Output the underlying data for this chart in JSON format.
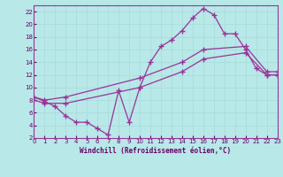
{
  "bg_color": "#b8e8e8",
  "grid_color": "#c8e8e8",
  "line_color": "#993399",
  "marker": "+",
  "xlabel": "Windchill (Refroidissement éolien,°C)",
  "xlabel_color": "#660066",
  "tick_color": "#660066",
  "xmin": 0,
  "xmax": 23,
  "ymin": 2,
  "ymax": 23,
  "yticks": [
    2,
    4,
    6,
    8,
    10,
    12,
    14,
    16,
    18,
    20,
    22
  ],
  "xticks": [
    0,
    1,
    2,
    3,
    4,
    5,
    6,
    7,
    8,
    9,
    10,
    11,
    12,
    13,
    14,
    15,
    16,
    17,
    18,
    19,
    20,
    21,
    22,
    23
  ],
  "curve1_x": [
    0,
    1,
    2,
    3,
    4,
    5,
    6,
    7,
    8,
    9,
    10,
    11,
    12,
    13,
    14,
    15,
    16,
    17,
    18,
    19,
    20,
    21,
    22,
    23
  ],
  "curve1_y": [
    8.5,
    7.8,
    7.0,
    5.5,
    4.5,
    4.5,
    3.5,
    2.5,
    9.5,
    4.5,
    10.0,
    14.0,
    16.5,
    17.5,
    19.0,
    21.0,
    22.5,
    21.5,
    18.5,
    18.5,
    16.0,
    13.0,
    12.0,
    12.0
  ],
  "curve2_x": [
    0,
    1,
    3,
    10,
    14,
    16,
    20,
    22,
    23
  ],
  "curve2_y": [
    8.5,
    8.0,
    8.5,
    11.5,
    14.0,
    16.0,
    16.5,
    12.5,
    12.5
  ],
  "curve3_x": [
    0,
    1,
    3,
    10,
    14,
    16,
    20,
    22,
    23
  ],
  "curve3_y": [
    8.0,
    7.5,
    7.5,
    10.0,
    12.5,
    14.5,
    15.5,
    12.0,
    12.0
  ]
}
